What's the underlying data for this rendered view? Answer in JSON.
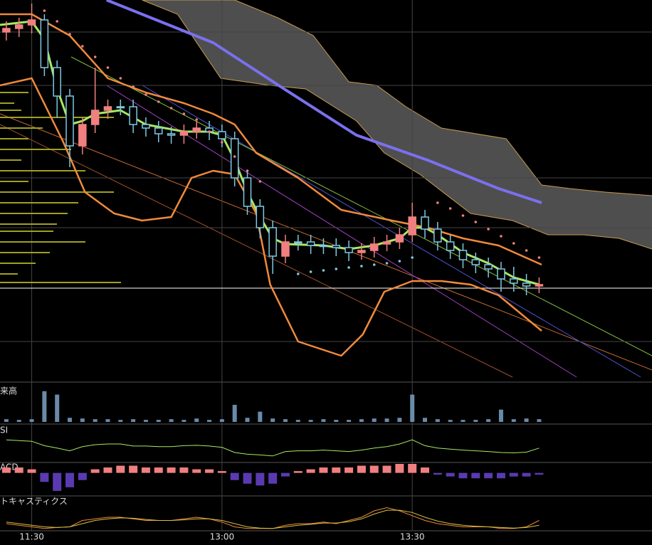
{
  "chart_data": {
    "type": "candlestick",
    "x": [
      -2,
      -1,
      0,
      1,
      2,
      3,
      4,
      5,
      6,
      7,
      8,
      9,
      10,
      11,
      12,
      13,
      14,
      15,
      16,
      17,
      18,
      19,
      20,
      21,
      22,
      23,
      24,
      25,
      26,
      27,
      28,
      29,
      30,
      31,
      32,
      33,
      34,
      35,
      36,
      37,
      38,
      39,
      40
    ],
    "open": [
      490,
      495,
      500,
      507,
      440,
      400,
      330,
      360,
      380,
      385,
      385,
      360,
      355,
      347,
      345,
      350,
      355,
      350,
      340,
      285,
      245,
      215,
      175,
      195,
      195,
      190,
      190,
      187,
      180,
      183,
      192,
      195,
      205,
      230,
      213,
      195,
      183,
      170,
      163,
      157,
      143,
      137,
      133
    ],
    "high": [
      505,
      510,
      530,
      515,
      450,
      410,
      370,
      440,
      395,
      395,
      395,
      370,
      365,
      357,
      360,
      365,
      365,
      360,
      350,
      295,
      255,
      225,
      205,
      205,
      205,
      200,
      200,
      197,
      193,
      202,
      205,
      215,
      250,
      240,
      223,
      205,
      193,
      180,
      173,
      167,
      160,
      150,
      145
    ],
    "low": [
      478,
      483,
      488,
      428,
      370,
      300,
      318,
      348,
      368,
      373,
      348,
      343,
      335,
      333,
      333,
      340,
      338,
      328,
      273,
      233,
      200,
      150,
      165,
      183,
      178,
      178,
      175,
      168,
      170,
      173,
      182,
      185,
      195,
      200,
      183,
      171,
      158,
      151,
      145,
      125,
      125,
      120,
      123
    ],
    "close": [
      495,
      500,
      507,
      440,
      400,
      330,
      360,
      380,
      385,
      385,
      360,
      355,
      347,
      345,
      350,
      355,
      350,
      340,
      285,
      245,
      215,
      175,
      195,
      195,
      190,
      190,
      187,
      180,
      183,
      192,
      195,
      205,
      230,
      213,
      195,
      183,
      170,
      163,
      157,
      143,
      137,
      133,
      135
    ],
    "up_color": "#f08080",
    "down_color": "#7ec8e3",
    "xlim": [
      -2.5,
      48.9
    ],
    "ylim": [
      0,
      535
    ],
    "xticks": [
      {
        "value": 0,
        "label": "11:30"
      },
      {
        "value": 15,
        "label": "13:00"
      },
      {
        "value": 30,
        "label": "13:30"
      }
    ],
    "grid_levels": [
      490,
      415,
      285,
      215,
      55
    ],
    "price_line": {
      "value": 130,
      "color": "#ffffff"
    },
    "cloud": {
      "color": "#5c5c5c",
      "edge_color": "#c89a50",
      "a": {
        "x": [
          8.7,
          16,
          19.4,
          22.2,
          25,
          27.2,
          29.5,
          32.3,
          37.4,
          40.2,
          42.4,
          45.2,
          48.9
        ],
        "values": [
          535,
          535,
          510,
          485,
          420,
          415,
          385,
          355,
          340,
          275,
          270,
          265,
          260
        ]
      },
      "b": {
        "x": [
          8.7,
          11.5,
          14.9,
          18.8,
          21.6,
          25.6,
          27.8,
          30.6,
          34.6,
          37.9,
          40.7,
          43.5,
          46.3,
          48.9
        ],
        "values": [
          535,
          515,
          425,
          415,
          410,
          365,
          320,
          290,
          235,
          225,
          205,
          205,
          200,
          185
        ]
      }
    },
    "volume_profile": {
      "color": "#a0a020",
      "levels": [
        405,
        390,
        380,
        370,
        355,
        340,
        325,
        310,
        295,
        280,
        265,
        250,
        235,
        220,
        210,
        195,
        180,
        165,
        150,
        138
      ],
      "values": [
        40,
        20,
        30,
        160,
        60,
        40,
        100,
        30,
        120,
        40,
        160,
        110,
        95,
        80,
        75,
        120,
        70,
        50,
        25,
        170
      ]
    },
    "lines": [
      {
        "color": "#7a70ee",
        "width": 4,
        "x": [
          5.9,
          14.3,
          19.9,
          25.6,
          31.2,
          36.8,
          40.2
        ],
        "values": [
          535,
          475,
          410,
          345,
          310,
          270,
          250
        ]
      },
      {
        "color": "#f08a3c",
        "width": 2.5,
        "x": [
          -2.5,
          0,
          3,
          6,
          9,
          12,
          14.3,
          16,
          17.7,
          21,
          24.4,
          28.4,
          31.2,
          34,
          36.8,
          40.2
        ],
        "values": [
          515,
          515,
          485,
          425,
          405,
          390,
          375,
          360,
          320,
          285,
          240,
          225,
          215,
          200,
          190,
          163
        ]
      },
      {
        "color": "#f08a3c",
        "width": 2.5,
        "x": [
          -2.5,
          0,
          2.5,
          4.2,
          6.5,
          8.7,
          11,
          12.6,
          14.3,
          16,
          17.7,
          18.8,
          21,
          24.4,
          26.1,
          27.8,
          30,
          32.3,
          34.6,
          36.8,
          40.2
        ],
        "values": [
          415,
          425,
          335,
          265,
          235,
          225,
          230,
          285,
          295,
          290,
          235,
          135,
          55,
          35,
          65,
          125,
          140,
          140,
          135,
          120,
          70
        ]
      },
      {
        "color": "#a8e860",
        "width": 3,
        "x": [
          -2.5,
          0,
          1,
          2,
          3,
          4,
          5,
          7,
          9,
          12,
          14,
          15,
          16,
          17,
          18,
          19,
          20,
          23,
          25,
          27,
          29,
          30,
          31,
          32,
          34,
          36,
          38,
          40
        ],
        "values": [
          500,
          505,
          480,
          410,
          360,
          365,
          375,
          380,
          360,
          350,
          350,
          345,
          310,
          265,
          230,
          200,
          192,
          190,
          185,
          190,
          200,
          215,
          215,
          205,
          180,
          165,
          145,
          135
        ]
      }
    ],
    "dots": [
      {
        "color": "#f08080",
        "x": [
          1,
          2,
          3,
          4,
          5,
          6,
          7,
          8,
          9,
          10,
          11,
          12,
          13,
          14,
          15,
          16,
          17,
          18
        ],
        "values": [
          520,
          505,
          487,
          470,
          455,
          440,
          425,
          413,
          402,
          392,
          383,
          375,
          367,
          350,
          335,
          315,
          295,
          280
        ]
      },
      {
        "color": "#7ec8e3",
        "x": [
          21,
          22,
          23,
          24,
          25,
          26,
          27,
          28,
          29,
          30
        ],
        "values": [
          150,
          153,
          155,
          157,
          159,
          161,
          163,
          165,
          168,
          173
        ]
      },
      {
        "color": "#f08080",
        "x": [
          32,
          33,
          34,
          35,
          36,
          37,
          38,
          39,
          40
        ],
        "values": [
          250,
          242,
          232,
          223,
          213,
          203,
          193,
          183,
          173
        ]
      }
    ],
    "panels": [
      {
        "label": "来高",
        "type": "bar",
        "ylim": [
          0,
          50
        ],
        "color": "#6a8aa8",
        "values": [
          4,
          3,
          4,
          45,
          40,
          6,
          5,
          4,
          4,
          3,
          4,
          3,
          3,
          4,
          3,
          5,
          3,
          4,
          25,
          6,
          15,
          5,
          4,
          3,
          3,
          4,
          3,
          3,
          4,
          5,
          5,
          6,
          40,
          6,
          4,
          3,
          3,
          3,
          4,
          18,
          4,
          5,
          4
        ]
      },
      {
        "label": "SI",
        "type": "line",
        "ylim": [
          0,
          100
        ],
        "series": [
          {
            "color": "#a8e860",
            "values": [
              62,
              60,
              58,
              45,
              38,
              30,
              42,
              48,
              50,
              50,
              44,
              44,
              42,
              42,
              45,
              46,
              44,
              40,
              25,
              20,
              18,
              15,
              28,
              30,
              30,
              32,
              30,
              28,
              32,
              38,
              42,
              50,
              62,
              45,
              38,
              35,
              32,
              30,
              28,
              25,
              24,
              26,
              38
            ]
          }
        ]
      },
      {
        "label": "ACD",
        "type": "bar",
        "ylim": [
          -12,
          5
        ],
        "color": "#f08080",
        "neg_color": "#5a3ab0",
        "values": [
          3,
          3,
          2,
          -5,
          -10,
          -8,
          -4,
          2,
          3,
          4,
          4,
          3,
          3,
          3,
          3,
          2,
          2,
          1,
          -4,
          -6,
          -7,
          -6,
          -2,
          1,
          2,
          3,
          3,
          3,
          4,
          4,
          4,
          5,
          5,
          3,
          -1,
          -2,
          -3,
          -3,
          -3,
          -3,
          -2,
          -2,
          -1
        ]
      },
      {
        "label": "トキャスティクス",
        "type": "line",
        "ylim": [
          0,
          100
        ],
        "series": [
          {
            "color": "#f08a3c",
            "values": [
              20,
              15,
              10,
              5,
              8,
              10,
              30,
              35,
              40,
              40,
              35,
              30,
              30,
              30,
              35,
              40,
              35,
              25,
              10,
              5,
              5,
              5,
              15,
              20,
              20,
              25,
              20,
              30,
              40,
              60,
              70,
              60,
              45,
              30,
              20,
              15,
              10,
              10,
              10,
              5,
              5,
              10,
              30
            ]
          },
          {
            "color": "#d8c040",
            "values": [
              25,
              20,
              15,
              10,
              8,
              10,
              20,
              30,
              35,
              38,
              37,
              33,
              30,
              30,
              32,
              35,
              35,
              30,
              20,
              10,
              6,
              5,
              10,
              15,
              18,
              22,
              22,
              26,
              35,
              50,
              62,
              62,
              55,
              40,
              28,
              20,
              15,
              12,
              10,
              8,
              6,
              8,
              15
            ]
          }
        ]
      }
    ]
  }
}
